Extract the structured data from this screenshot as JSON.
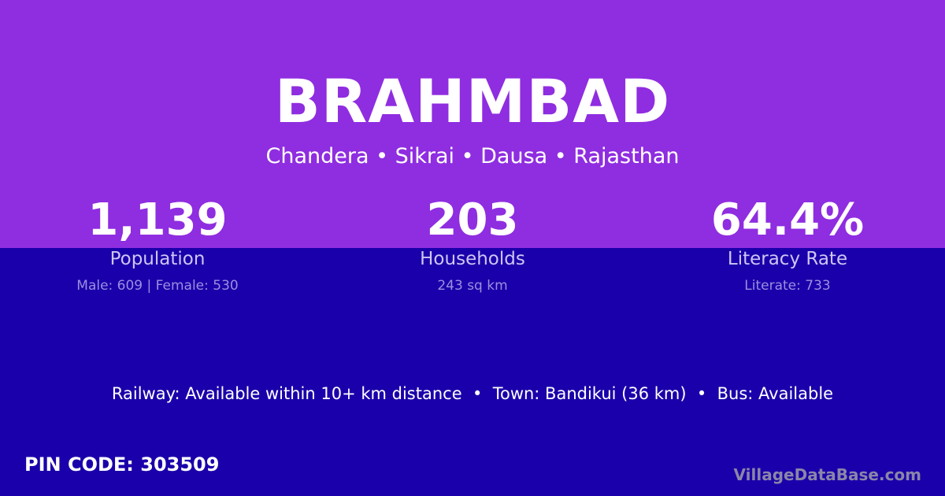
{
  "village": {
    "name": "BRAHMBAD",
    "location": "Chandera • Sikrai • Dausa • Rajasthan"
  },
  "stats": [
    {
      "value": "1,139",
      "label": "Population",
      "sub": "Male: 609 | Female: 530"
    },
    {
      "value": "203",
      "label": "Households",
      "sub": "243 sq km"
    },
    {
      "value": "64.4%",
      "label": "Literacy Rate",
      "sub": "Literate: 733"
    }
  ],
  "connectivity": "Railway: Available within 10+ km distance  •  Town: Bandikui (36 km)  •  Bus: Available",
  "pin_code": "PIN CODE: 303509",
  "brand": "VillageDataBase.com",
  "colors": {
    "top": "#8f2de0",
    "bottom": "#1a00aa"
  }
}
